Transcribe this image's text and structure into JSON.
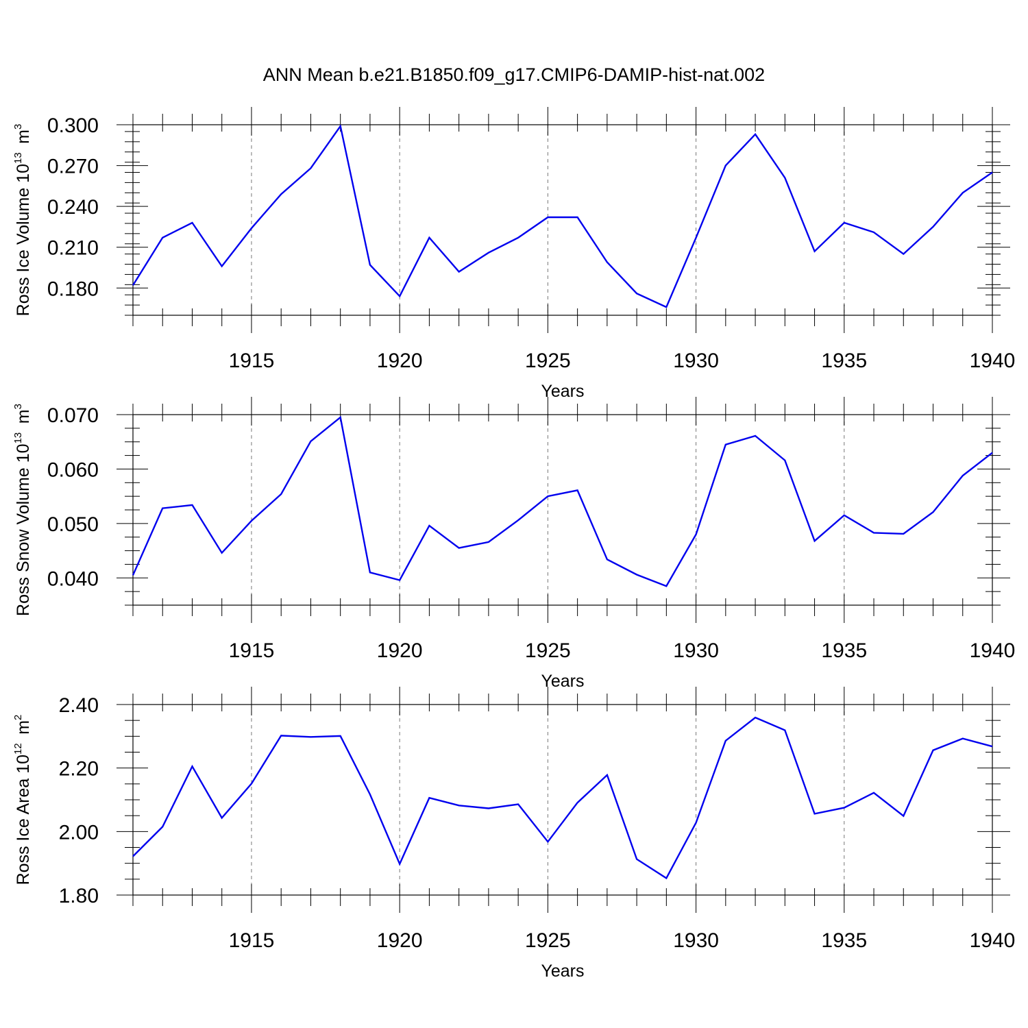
{
  "chart_data": {
    "type": "line",
    "title": "ANN Mean b.e21.B1850.f09_g17.CMIP6-DAMIP-hist-nat.002",
    "line_color": "#0000ee",
    "panels": [
      {
        "id": "ice-volume",
        "ylabel": {
          "text": "Ross Ice Volume 10",
          "exp": "13",
          "unit": "m",
          "unit_exp": "3"
        },
        "xlabel": "Years",
        "xlim": [
          1911,
          1940
        ],
        "ylim": [
          0.16,
          0.3
        ],
        "yticks": [
          0.18,
          0.21,
          0.24,
          0.27,
          0.3
        ],
        "ytick_labels": [
          "0.180",
          "0.210",
          "0.240",
          "0.270",
          "0.300"
        ],
        "xticks": [
          1915,
          1920,
          1925,
          1930,
          1935,
          1940
        ],
        "xtick_labels": [
          "1915",
          "1920",
          "1925",
          "1930",
          "1935",
          "1940"
        ],
        "x": [
          1911,
          1912,
          1913,
          1914,
          1915,
          1916,
          1917,
          1918,
          1919,
          1920,
          1921,
          1922,
          1923,
          1924,
          1925,
          1926,
          1927,
          1928,
          1929,
          1930,
          1931,
          1932,
          1933,
          1934,
          1935,
          1936,
          1937,
          1938,
          1939,
          1940
        ],
        "values": [
          0.182,
          0.217,
          0.228,
          0.196,
          0.224,
          0.249,
          0.268,
          0.299,
          0.197,
          0.174,
          0.217,
          0.192,
          0.206,
          0.217,
          0.232,
          0.232,
          0.199,
          0.176,
          0.166,
          0.217,
          0.27,
          0.293,
          0.261,
          0.207,
          0.228,
          0.221,
          0.205,
          0.225,
          0.25,
          0.265
        ]
      },
      {
        "id": "snow-volume",
        "ylabel": {
          "text": "Ross Snow Volume 10",
          "exp": "13",
          "unit": "m",
          "unit_exp": "3"
        },
        "xlabel": "Years",
        "xlim": [
          1911,
          1940
        ],
        "ylim": [
          0.035,
          0.07
        ],
        "yticks": [
          0.04,
          0.05,
          0.06,
          0.07
        ],
        "ytick_labels": [
          "0.040",
          "0.050",
          "0.060",
          "0.070"
        ],
        "xticks": [
          1915,
          1920,
          1925,
          1930,
          1935,
          1940
        ],
        "xtick_labels": [
          "1915",
          "1920",
          "1925",
          "1930",
          "1935",
          "1940"
        ],
        "x": [
          1911,
          1912,
          1913,
          1914,
          1915,
          1916,
          1917,
          1918,
          1919,
          1920,
          1921,
          1922,
          1923,
          1924,
          1925,
          1926,
          1927,
          1928,
          1929,
          1930,
          1931,
          1932,
          1933,
          1934,
          1935,
          1936,
          1937,
          1938,
          1939,
          1940
        ],
        "values": [
          0.0405,
          0.0528,
          0.0534,
          0.0446,
          0.0505,
          0.0554,
          0.0651,
          0.0695,
          0.041,
          0.0396,
          0.0496,
          0.0455,
          0.0466,
          0.0506,
          0.055,
          0.0561,
          0.0434,
          0.0406,
          0.0385,
          0.048,
          0.0645,
          0.0661,
          0.0616,
          0.0468,
          0.0515,
          0.0483,
          0.0481,
          0.0521,
          0.0588,
          0.063
        ]
      },
      {
        "id": "ice-area",
        "ylabel": {
          "text": "Ross Ice Area 10",
          "exp": "12",
          "unit": "m",
          "unit_exp": "2"
        },
        "xlabel": "Years",
        "xlim": [
          1911,
          1940
        ],
        "ylim": [
          1.8,
          2.4
        ],
        "yticks": [
          1.8,
          2.0,
          2.2,
          2.4
        ],
        "ytick_labels": [
          "1.80",
          "2.00",
          "2.20",
          "2.40"
        ],
        "xticks": [
          1915,
          1920,
          1925,
          1930,
          1935,
          1940
        ],
        "xtick_labels": [
          "1915",
          "1920",
          "1925",
          "1930",
          "1935",
          "1940"
        ],
        "x": [
          1911,
          1912,
          1913,
          1914,
          1915,
          1916,
          1917,
          1918,
          1919,
          1920,
          1921,
          1922,
          1923,
          1924,
          1925,
          1926,
          1927,
          1928,
          1929,
          1930,
          1931,
          1932,
          1933,
          1934,
          1935,
          1936,
          1937,
          1938,
          1939,
          1940
        ],
        "values": [
          1.922,
          2.015,
          2.205,
          2.043,
          2.151,
          2.302,
          2.298,
          2.301,
          2.117,
          1.898,
          2.106,
          2.082,
          2.073,
          2.086,
          1.968,
          2.091,
          2.178,
          1.913,
          1.853,
          2.028,
          2.286,
          2.359,
          2.319,
          2.056,
          2.075,
          2.122,
          2.049,
          2.256,
          2.293,
          2.268
        ]
      }
    ]
  }
}
